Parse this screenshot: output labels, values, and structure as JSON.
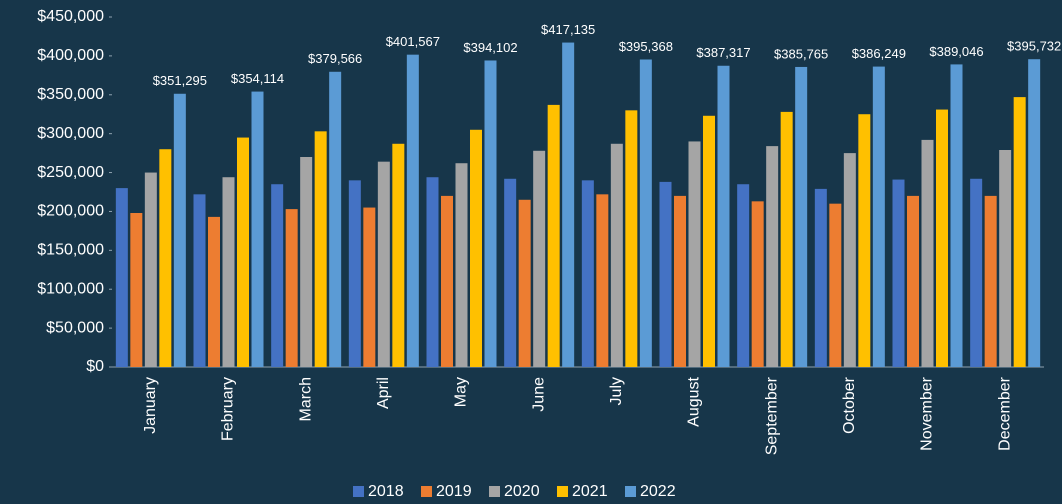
{
  "chart_data": {
    "type": "bar",
    "categories": [
      "January",
      "February",
      "March",
      "April",
      "May",
      "June",
      "July",
      "August",
      "September",
      "October",
      "November",
      "December"
    ],
    "series": [
      {
        "name": "2018",
        "color": "#4472c4",
        "values": [
          230000,
          222000,
          235000,
          240000,
          244000,
          242000,
          240000,
          238000,
          235000,
          229000,
          241000,
          242000
        ]
      },
      {
        "name": "2019",
        "color": "#ed7d31",
        "values": [
          198000,
          193000,
          203000,
          205000,
          220000,
          215000,
          222000,
          220000,
          213000,
          210000,
          220000,
          220000
        ]
      },
      {
        "name": "2020",
        "color": "#a5a5a5",
        "values": [
          250000,
          244000,
          270000,
          264000,
          262000,
          278000,
          287000,
          290000,
          284000,
          275000,
          292000,
          279000
        ]
      },
      {
        "name": "2021",
        "color": "#ffc000",
        "values": [
          280000,
          295000,
          303000,
          287000,
          305000,
          337000,
          330000,
          323000,
          328000,
          325000,
          331000,
          347000
        ]
      },
      {
        "name": "2022",
        "color": "#5b9bd5",
        "values": [
          351295,
          354114,
          379566,
          401567,
          394102,
          417135,
          395368,
          387317,
          385765,
          386249,
          389046,
          395732
        ],
        "value_labels": [
          "$351,295",
          "$354,114",
          "$379,566",
          "$401,567",
          "$394,102",
          "$417,135",
          "$395,368",
          "$387,317",
          "$385,765",
          "$386,249",
          "$389,046",
          "$395,732"
        ]
      }
    ],
    "ylim": [
      0,
      450000
    ],
    "yticks": [
      {
        "value": 0,
        "label": "$0"
      },
      {
        "value": 50000,
        "label": "$50,000"
      },
      {
        "value": 100000,
        "label": "$100,000"
      },
      {
        "value": 150000,
        "label": "$150,000"
      },
      {
        "value": 200000,
        "label": "$200,000"
      },
      {
        "value": 250000,
        "label": "$250,000"
      },
      {
        "value": 300000,
        "label": "$300,000"
      },
      {
        "value": 350000,
        "label": "$350,000"
      },
      {
        "value": 400000,
        "label": "$400,000"
      },
      {
        "value": 450000,
        "label": "$450,000"
      }
    ],
    "legend": "bottom"
  }
}
